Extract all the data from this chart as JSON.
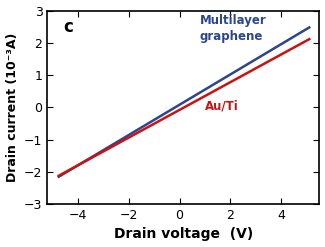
{
  "title_label": "c",
  "xlabel": "Drain voltage  (V)",
  "ylabel": "Drain current (10⁻³A)",
  "xlim": [
    -5.2,
    5.5
  ],
  "ylim": [
    -3,
    3
  ],
  "xticks": [
    -4,
    -2,
    0,
    2,
    4
  ],
  "yticks": [
    -3,
    -2,
    -1,
    0,
    1,
    2,
    3
  ],
  "multilayer_color": "#2b4590",
  "auti_color": "#cc1111",
  "line_width": 1.8,
  "multilayer_slope": 0.47,
  "multilayer_intercept": 0.08,
  "auti_slope": 0.43,
  "auti_intercept": -0.08,
  "x_start": -4.75,
  "x_end": 5.1,
  "legend_multilayer": "Multilayer\ngraphene",
  "legend_auti": "Au/Ti",
  "background_color": "#ffffff",
  "axes_background": "#ffffff",
  "tick_labelsize": 9,
  "xlabel_fontsize": 10,
  "ylabel_fontsize": 9,
  "label_c_fontsize": 12,
  "legend_fontsize": 8.5,
  "legend_auti_fontsize": 8.5
}
